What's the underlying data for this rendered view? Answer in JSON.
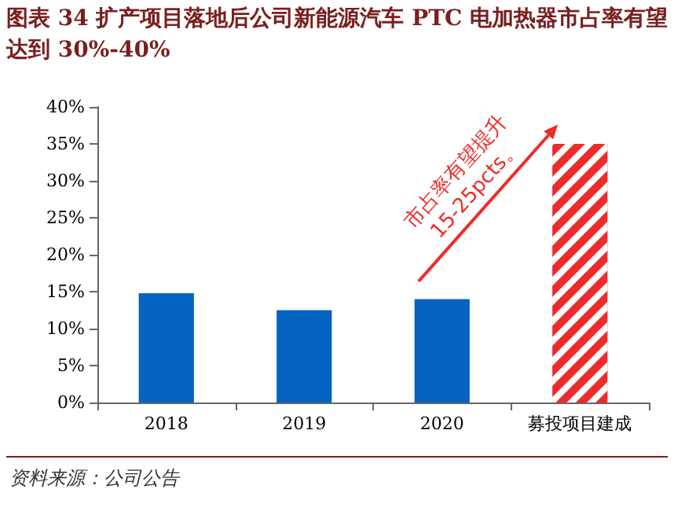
{
  "chart_data": {
    "type": "bar",
    "title": "图表 34 扩产项目落地后公司新能源汽车 PTC 电加热器市占率有望达到 30%-40%",
    "categories": [
      "2018",
      "2019",
      "2020",
      "募投项目建成"
    ],
    "values": [
      14.8,
      12.5,
      14.0,
      35
    ],
    "colors": [
      "#0563c1",
      "#0563c1",
      "#0563c1",
      "#ee2a2a"
    ],
    "ylim": [
      0,
      40
    ],
    "yticks": [
      {
        "value": 0,
        "label": "0%"
      },
      {
        "value": 5,
        "label": "5%"
      },
      {
        "value": 10,
        "label": "10%"
      },
      {
        "value": 15,
        "label": "15%"
      },
      {
        "value": 20,
        "label": "20%"
      },
      {
        "value": 25,
        "label": "25%"
      },
      {
        "value": 30,
        "label": "30%"
      },
      {
        "value": 35,
        "label": "35%"
      },
      {
        "value": 40,
        "label": "40%"
      }
    ],
    "grid": false,
    "annotations": [
      "市占率有望提升\n15-25pcts。",
      "资料来源：公司公告"
    ]
  }
}
